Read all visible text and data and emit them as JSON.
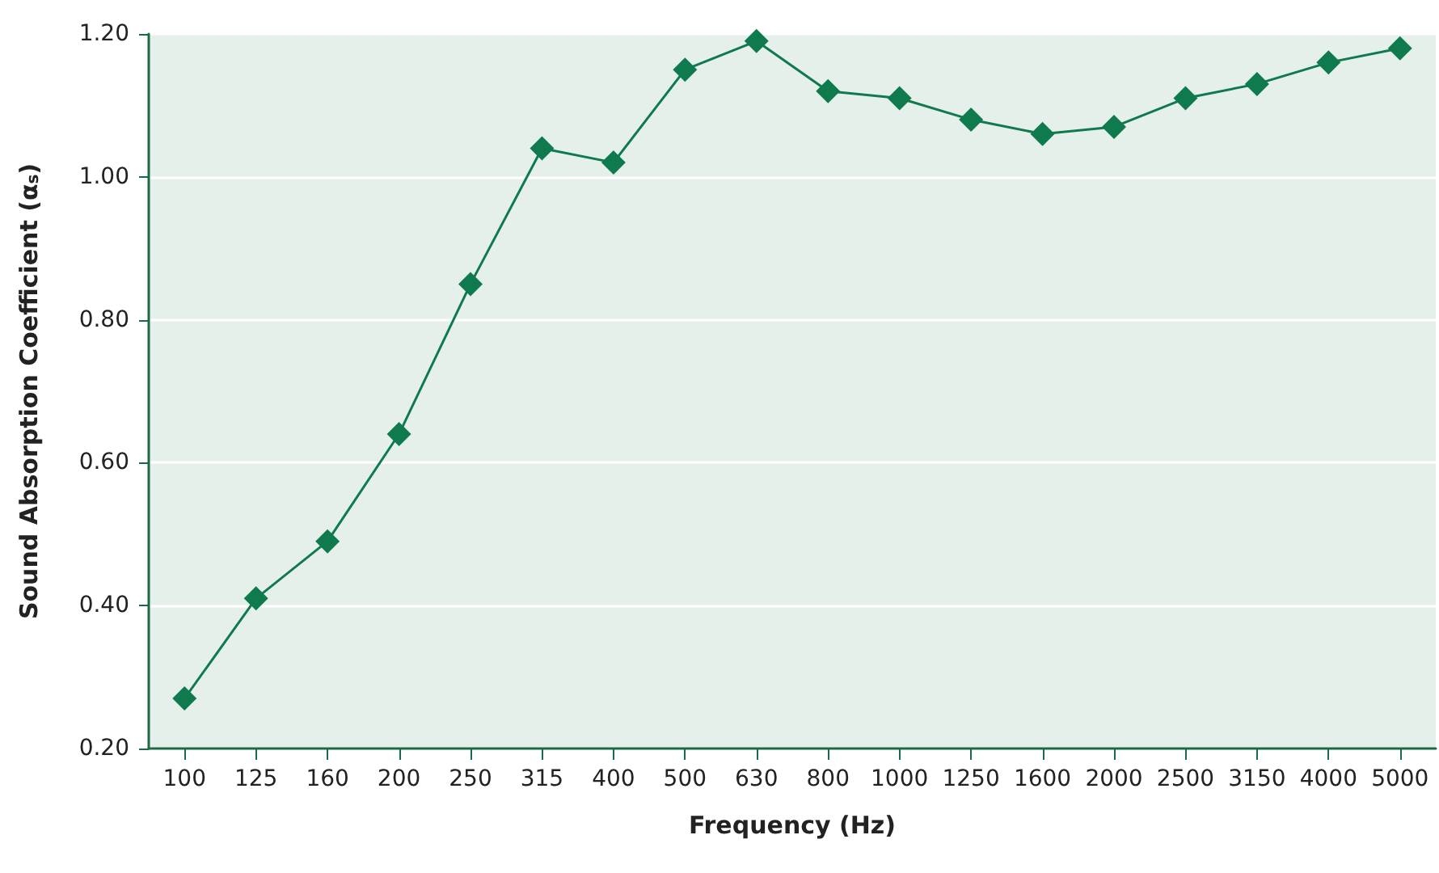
{
  "chart_data": {
    "type": "line",
    "xlabel": "Frequency (Hz)",
    "ylabel": "Sound Absorption Coefficient (α$_{s}$)",
    "categories": [
      "100",
      "125",
      "160",
      "200",
      "250",
      "315",
      "400",
      "500",
      "630",
      "800",
      "1000",
      "1250",
      "1600",
      "2000",
      "2500",
      "3150",
      "4000",
      "5000"
    ],
    "series": [
      {
        "color": "#0f7a4e",
        "values": [
          0.27,
          0.41,
          0.49,
          0.64,
          0.85,
          1.04,
          1.02,
          1.15,
          1.19,
          1.12,
          1.11,
          1.08,
          1.06,
          1.07,
          1.11,
          1.13,
          1.16,
          1.18
        ]
      }
    ],
    "ylim": [
      0.2,
      1.2
    ],
    "yticks": [
      {
        "value": 0.2,
        "label": "0.20"
      },
      {
        "value": 0.4,
        "label": "0.40"
      },
      {
        "value": 0.6,
        "label": "0.60"
      },
      {
        "value": 0.8,
        "label": "0.80"
      },
      {
        "value": 1.0,
        "label": "1.00"
      },
      {
        "value": 1.2,
        "label": "1.20"
      }
    ],
    "grid": "y",
    "marker": "diamond",
    "line_style": "solid"
  }
}
